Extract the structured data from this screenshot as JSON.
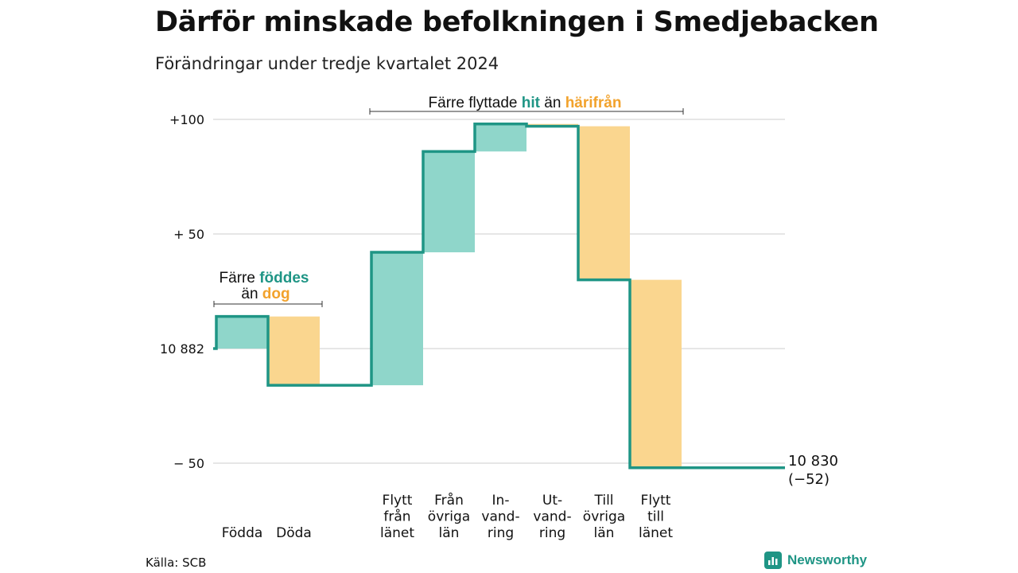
{
  "title": "Därför minskade befolkningen i Smedjebacken",
  "subtitle": "Förändringar under tredje kvartalet 2024",
  "source": "Källa: SCB",
  "logo": {
    "name": "Newsworthy",
    "icon": "bar-chart-icon"
  },
  "colors": {
    "increase": "#8fd6ca",
    "decrease": "#fad68f",
    "line": "#1f9585",
    "highlight_teal": "#1f9585",
    "highlight_orange": "#f2a22c",
    "grid": "#dddddd"
  },
  "annotations": {
    "births": {
      "line1_before": "Färre ",
      "line1_hl": "föddes",
      "line2_before": "än ",
      "line2_hl": "dog"
    },
    "moves": {
      "before": "Färre flyttade ",
      "hl1": "hit",
      "middle": " än ",
      "hl2": "härifrån"
    }
  },
  "end_label": {
    "value": "10 830",
    "change": "(−52)"
  },
  "chart_data": {
    "type": "waterfall",
    "start_value": 10882,
    "end_value": 10830,
    "total_change": -52,
    "ylim": [
      -52,
      100
    ],
    "yticks": [
      {
        "value": 100,
        "label": "+100"
      },
      {
        "value": 50,
        "label": "+ 50"
      },
      {
        "value": 0,
        "label": "10 882"
      },
      {
        "value": -50,
        "label": "−  50"
      }
    ],
    "grid": true,
    "categories": [
      {
        "label": [
          "Födda"
        ],
        "change": 14,
        "direction": "increase",
        "col": 0
      },
      {
        "label": [
          "Döda"
        ],
        "change": -30,
        "direction": "decrease",
        "col": 1
      },
      {
        "label": [
          "Flytt",
          "från",
          "länet"
        ],
        "change": 58,
        "direction": "increase",
        "col": 3
      },
      {
        "label": [
          "Från",
          "övriga",
          "län"
        ],
        "change": 44,
        "direction": "increase",
        "col": 4
      },
      {
        "label": [
          "In-",
          "vand-",
          "ring"
        ],
        "change": 12,
        "direction": "increase",
        "col": 5
      },
      {
        "label": [
          "Ut-",
          "vand-",
          "ring"
        ],
        "change": -1,
        "direction": "decrease",
        "col": 6
      },
      {
        "label": [
          "Till",
          "övriga",
          "län"
        ],
        "change": -67,
        "direction": "decrease",
        "col": 7
      },
      {
        "label": [
          "Flytt",
          "till",
          "länet"
        ],
        "change": -82,
        "direction": "decrease",
        "col": 8
      }
    ]
  }
}
